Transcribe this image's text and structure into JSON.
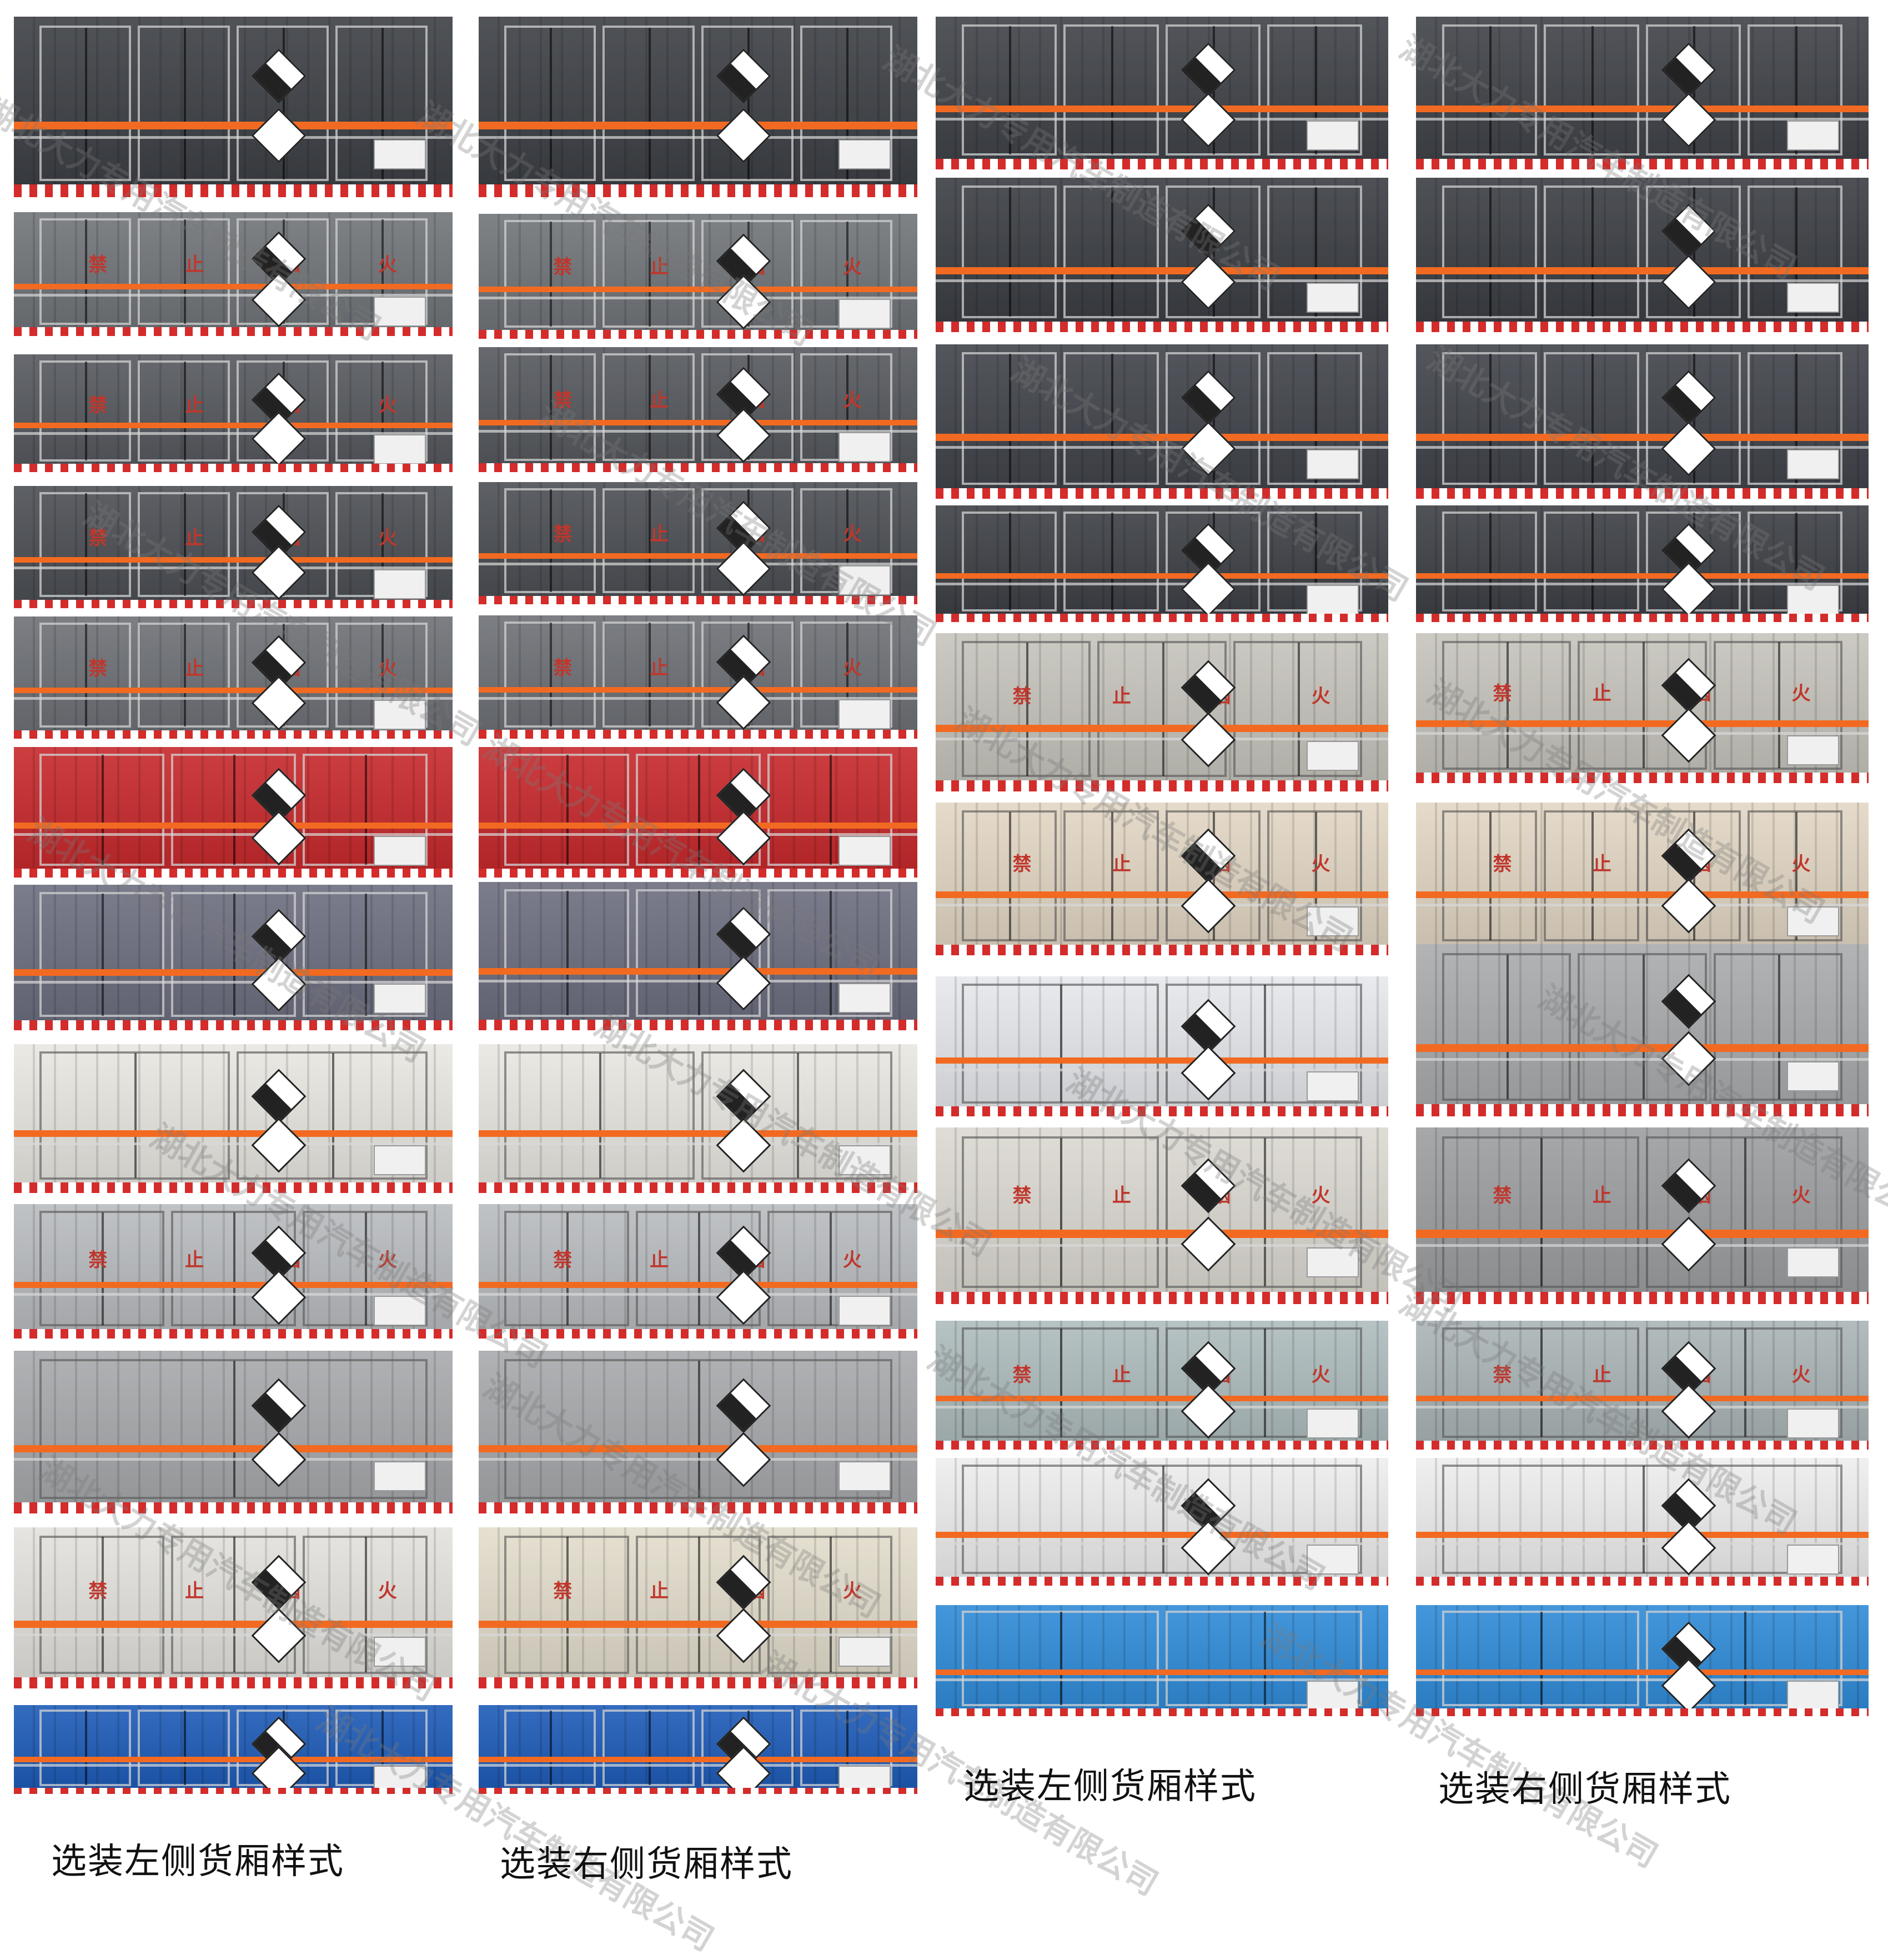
{
  "warning_chars": [
    "禁",
    "止",
    "烟",
    "火"
  ],
  "captions": {
    "left_bottom": "选装左侧货厢样式",
    "right_bottom": "选装右侧货厢样式",
    "left_top": "选装左侧货厢样式",
    "right_top": "选装右侧货厢样式"
  },
  "watermark": "湖北大力专用汽车制造有限公司",
  "columns": [
    {
      "name": "left-outer",
      "panels": [
        {
          "color": "#3c3f44",
          "doors": 4,
          "warn": false,
          "hazard": true
        },
        {
          "color": "#707478",
          "doors": 4,
          "warn": true,
          "hazard": true
        },
        {
          "color": "#55585d",
          "doors": 4,
          "warn": true,
          "hazard": true
        },
        {
          "color": "#4b4e53",
          "doors": 4,
          "warn": true,
          "hazard": true
        },
        {
          "color": "#6d7075",
          "doors": 4,
          "warn": true,
          "hazard": true
        },
        {
          "color": "#c7282b",
          "doors": 3,
          "warn": false,
          "hazard": true
        },
        {
          "color": "#6c6e7f",
          "doors": 3,
          "warn": false,
          "hazard": true
        },
        {
          "color": "#e9e7e1",
          "doors": 2,
          "warn": false,
          "hazard": true
        },
        {
          "color": "#b9bcbf",
          "doors": 3,
          "warn": true,
          "hazard": true
        },
        {
          "color": "#a7a9ac",
          "doors": 1,
          "warn": false,
          "hazard": true
        },
        {
          "color": "#e3e2dd",
          "doors": 3,
          "warn": true,
          "hazard": true
        },
        {
          "color": "#1d5bb8",
          "doors": 4,
          "warn": false,
          "hazard": true
        }
      ]
    },
    {
      "name": "left-inner",
      "panels": [
        {
          "color": "#3c3f44",
          "doors": 4,
          "warn": false,
          "hazard": true
        },
        {
          "color": "#707478",
          "doors": 4,
          "warn": true,
          "hazard": true
        },
        {
          "color": "#55585d",
          "doors": 4,
          "warn": true,
          "hazard": true
        },
        {
          "color": "#4b4e53",
          "doors": 4,
          "warn": true,
          "hazard": true
        },
        {
          "color": "#6d7075",
          "doors": 4,
          "warn": true,
          "hazard": true
        },
        {
          "color": "#c7282b",
          "doors": 3,
          "warn": false,
          "hazard": true
        },
        {
          "color": "#6c6e7f",
          "doors": 3,
          "warn": false,
          "hazard": true
        },
        {
          "color": "#e9e7e1",
          "doors": 2,
          "warn": false,
          "hazard": true
        },
        {
          "color": "#b9bcbf",
          "doors": 3,
          "warn": true,
          "hazard": true
        },
        {
          "color": "#a7a9ac",
          "doors": 1,
          "warn": false,
          "hazard": true
        },
        {
          "color": "#e3ddcc",
          "doors": 3,
          "warn": true,
          "hazard": true
        },
        {
          "color": "#1d5bb8",
          "doors": 4,
          "warn": false,
          "hazard": true
        }
      ]
    },
    {
      "name": "right-inner",
      "panels": [
        {
          "color": "#3f4248",
          "doors": 4,
          "warn": false,
          "hazard": true
        },
        {
          "color": "#3a3d43",
          "doors": 4,
          "warn": false,
          "hazard": true
        },
        {
          "color": "#40434a",
          "doors": 4,
          "warn": false,
          "hazard": true
        },
        {
          "color": "#3c3f45",
          "doors": 4,
          "warn": false,
          "hazard": true
        },
        {
          "color": "#c6c4bc",
          "doors": 3,
          "warn": true,
          "hazard": true
        },
        {
          "color": "#e3d7c4",
          "doors": 4,
          "warn": true,
          "hazard": true
        },
        {
          "color": "#e6e8ec",
          "doors": 2,
          "warn": false,
          "hazard": true
        },
        {
          "color": "#dcd9d2",
          "doors": 2,
          "warn": true,
          "hazard": true
        },
        {
          "color": "#aebcbd",
          "doors": 2,
          "warn": true,
          "hazard": true
        },
        {
          "color": "#eeeeee",
          "doors": 1,
          "warn": false,
          "hazard": true
        },
        {
          "color": "#2f8bd8",
          "doors": 2,
          "warn": false,
          "hazard": false
        }
      ]
    },
    {
      "name": "right-outer",
      "panels": [
        {
          "color": "#3f4248",
          "doors": 4,
          "warn": false,
          "hazard": true
        },
        {
          "color": "#3a3d43",
          "doors": 4,
          "warn": false,
          "hazard": true
        },
        {
          "color": "#40434a",
          "doors": 4,
          "warn": false,
          "hazard": true
        },
        {
          "color": "#3c3f45",
          "doors": 4,
          "warn": false,
          "hazard": true
        },
        {
          "color": "#c6c4bc",
          "doors": 3,
          "warn": true,
          "hazard": true
        },
        {
          "color": "#e3d7c4",
          "doors": 4,
          "warn": true,
          "hazard": true
        },
        {
          "color": "#a9abad",
          "doors": 3,
          "warn": false,
          "hazard": true
        },
        {
          "color": "#9c9ea0",
          "doors": 2,
          "warn": true,
          "hazard": true
        },
        {
          "color": "#aab4b6",
          "doors": 2,
          "warn": true,
          "hazard": true
        },
        {
          "color": "#eeeeee",
          "doors": 1,
          "warn": false,
          "hazard": true
        },
        {
          "color": "#2f8bd8",
          "doors": 2,
          "warn": false,
          "hazard": true
        }
      ]
    }
  ]
}
